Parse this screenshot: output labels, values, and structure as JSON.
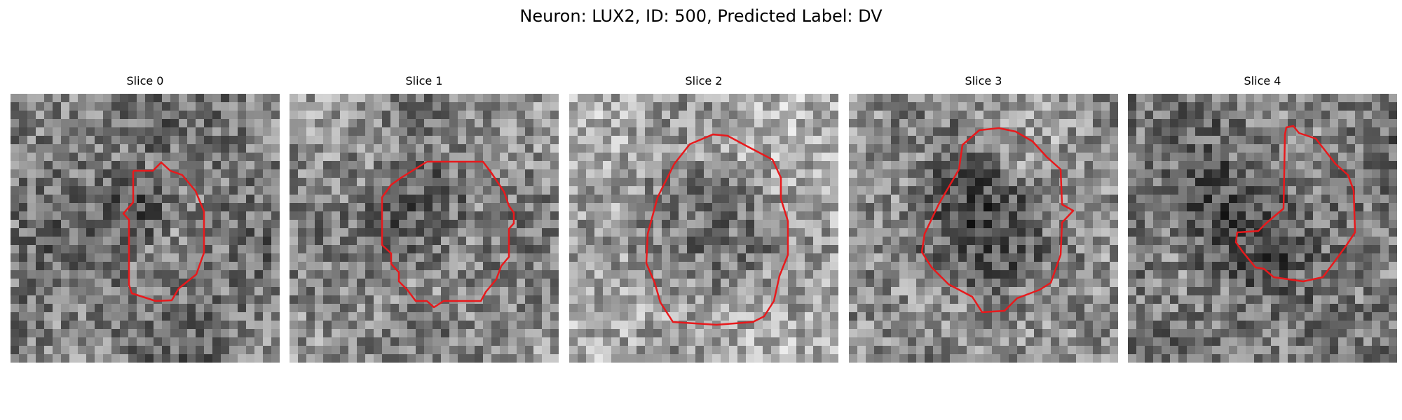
{
  "figure": {
    "title": "Neuron: LUX2, ID: 500, Predicted Label: DV"
  },
  "panels": [
    {
      "title": "Slice 0"
    },
    {
      "title": "Slice 1"
    },
    {
      "title": "Slice 2"
    },
    {
      "title": "Slice 3"
    },
    {
      "title": "Slice 4"
    }
  ],
  "colors": {
    "contour": "#e8191c",
    "background": "#ffffff"
  }
}
